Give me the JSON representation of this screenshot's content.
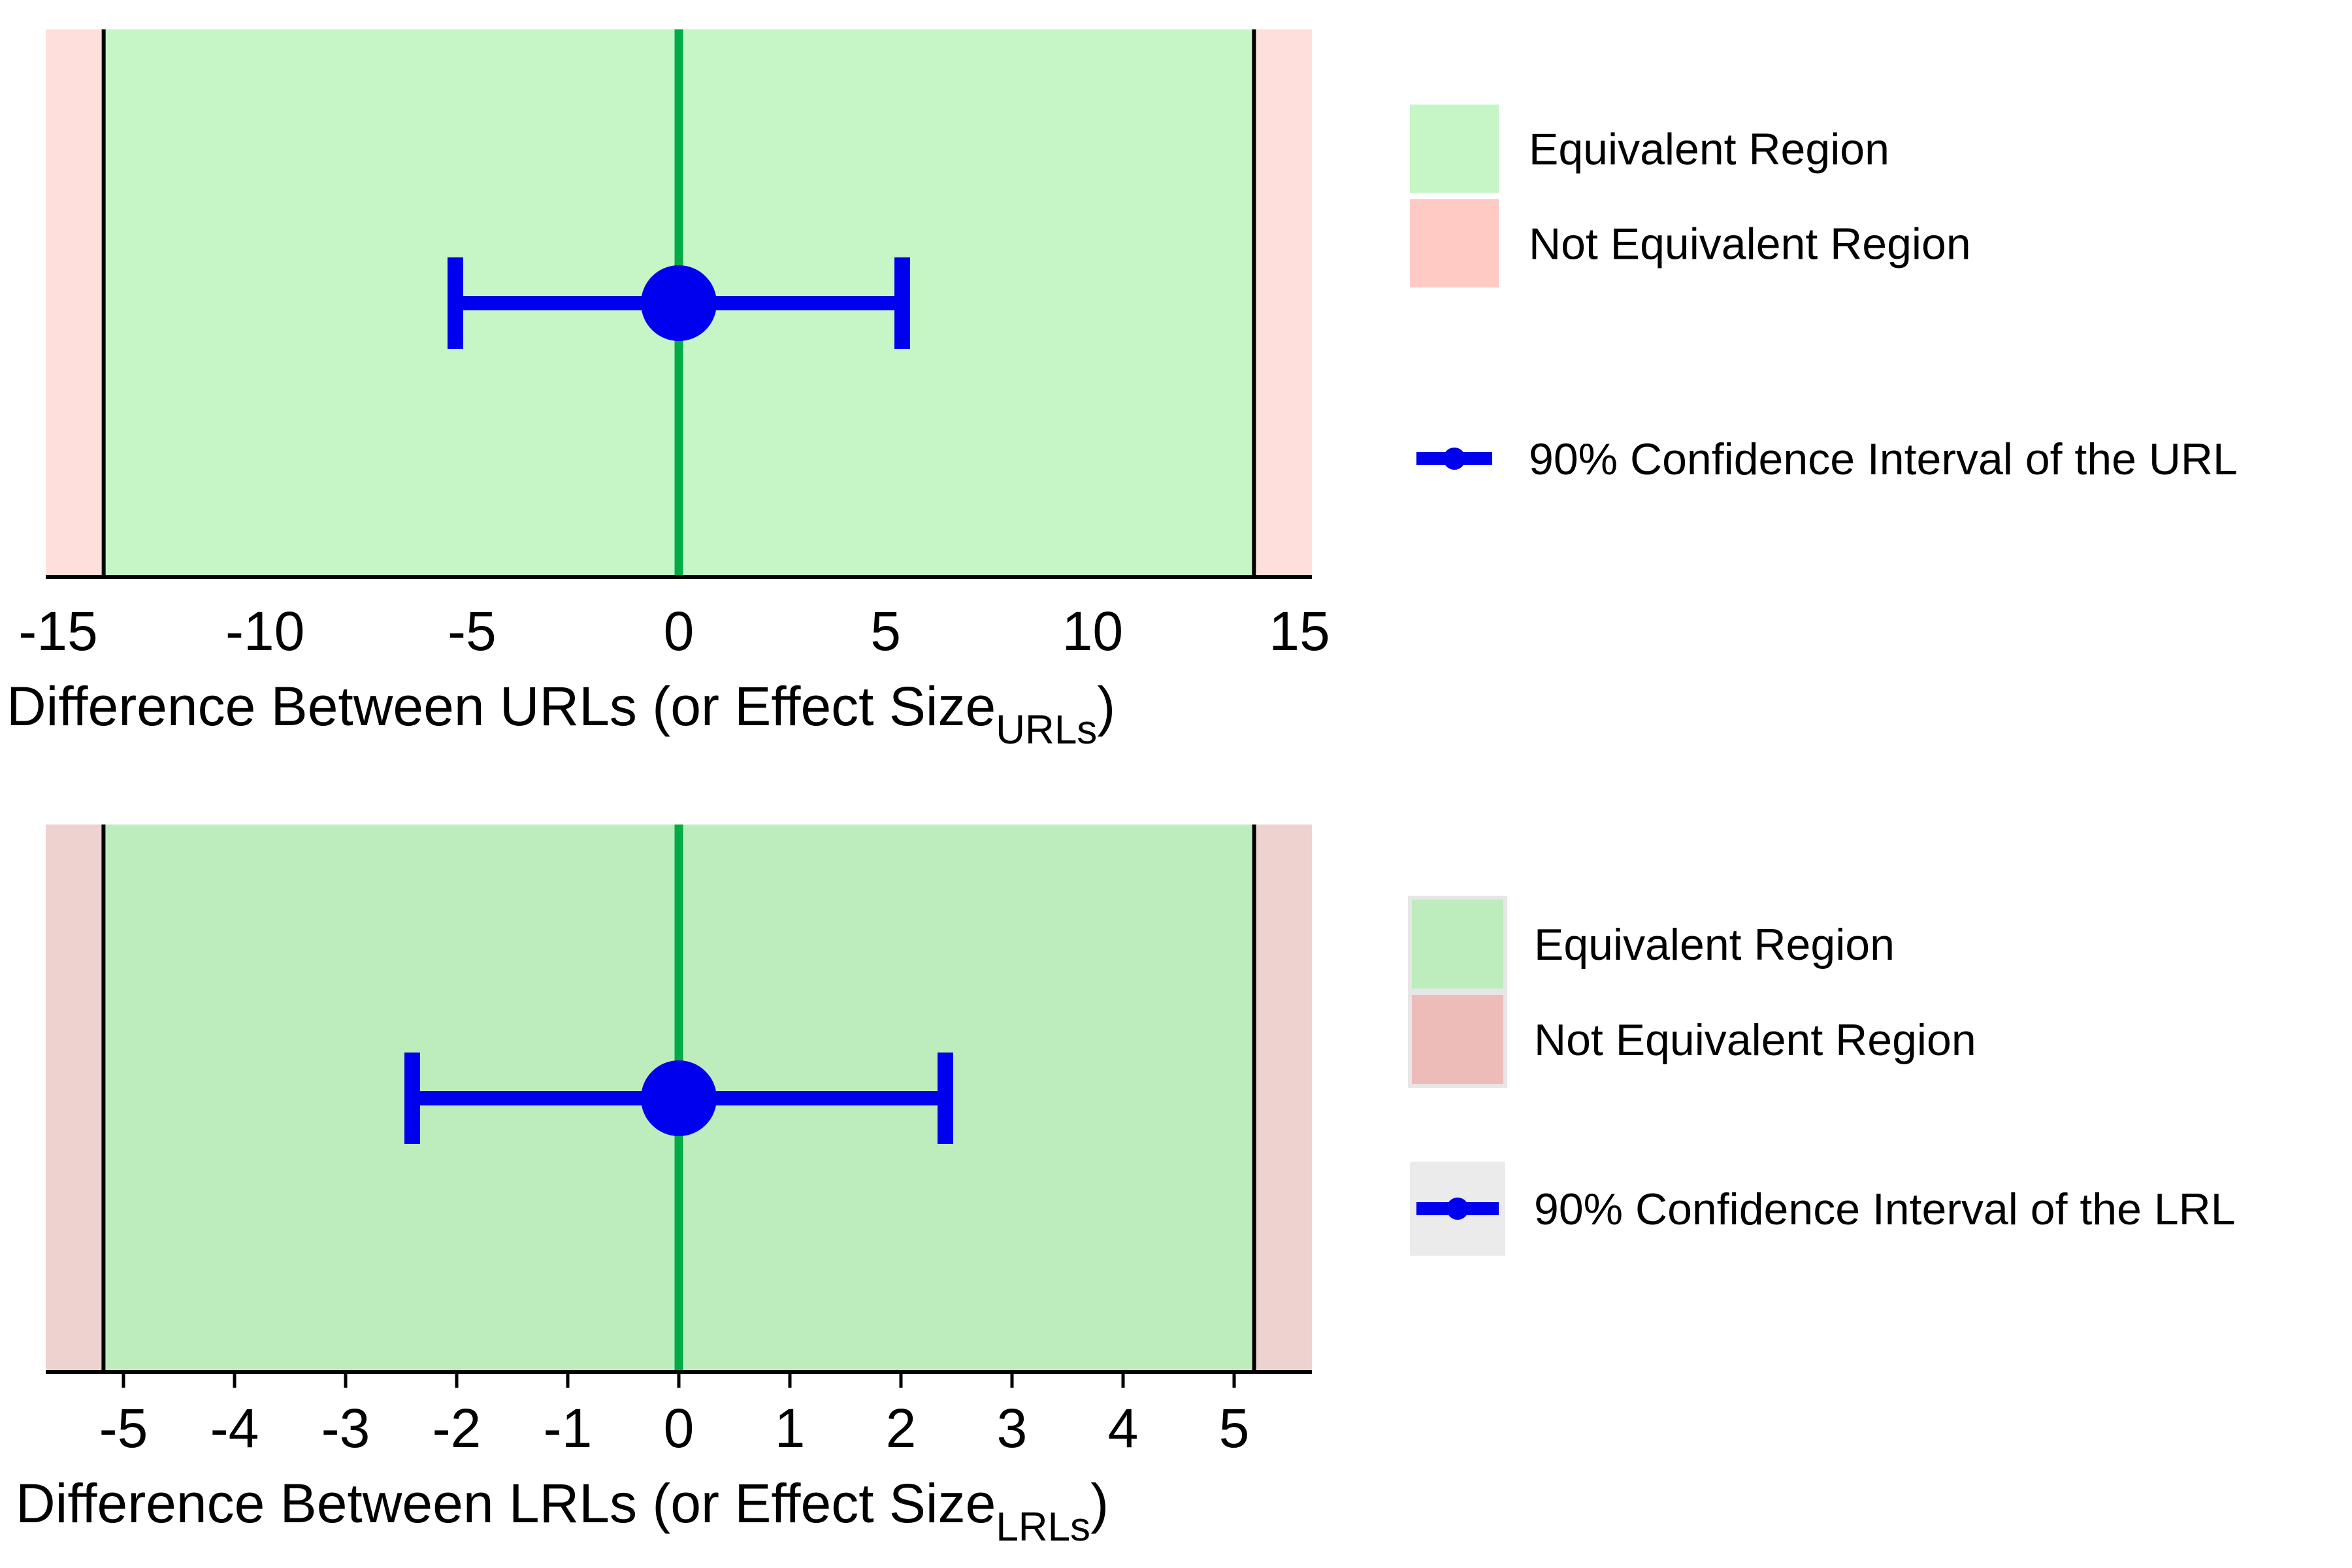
{
  "chart_data": [
    {
      "id": "url",
      "type": "interval",
      "title": "",
      "xlabel": "Difference Between URLs (or Effect Size",
      "xlabel_subscript": "URLs",
      "xlabel_close": ")",
      "xlim": [
        -15.3,
        15.3
      ],
      "xticks": [
        -15,
        -10,
        -5,
        0,
        5,
        10,
        15
      ],
      "tick_labels": [
        "-15",
        "-10",
        "-5",
        "0",
        "5",
        "10",
        "15"
      ],
      "tick_marks": false,
      "equivalence_bounds": [
        -13.9,
        13.9
      ],
      "reference_line": 0,
      "estimate": 0,
      "ci": [
        -5.4,
        5.4
      ],
      "colors": {
        "equivalent": "#c6f5c6",
        "not_equivalent": "#ffdfdc",
        "ci": "#0000ee",
        "reference": "#00aa44",
        "bounds": "#000000"
      },
      "legend": {
        "placement": "right",
        "items": [
          {
            "label": "Equivalent Region",
            "swatch_color": "#c6f5c6"
          },
          {
            "label": "Not Equivalent Region",
            "swatch_color": "#ffc9c4"
          },
          {
            "label": "90% Confidence Interval of the URL",
            "swatch_color": "#0000ee"
          }
        ]
      }
    },
    {
      "id": "lrl",
      "type": "interval",
      "title": "",
      "xlabel": "Difference Between LRLs (or Effect Size",
      "xlabel_subscript": "LRLs",
      "xlabel_close": ")",
      "xlim": [
        -5.7,
        5.7
      ],
      "xticks": [
        -5,
        -4,
        -3,
        -2,
        -1,
        0,
        1,
        2,
        3,
        4,
        5
      ],
      "tick_labels": [
        "-5",
        "-4",
        "-3",
        "-2",
        "-1",
        "0",
        "1",
        "2",
        "3",
        "4",
        "5"
      ],
      "tick_marks": true,
      "equivalence_bounds": [
        -5.18,
        5.18
      ],
      "reference_line": 0,
      "estimate": 0,
      "ci": [
        -2.4,
        2.4
      ],
      "colors": {
        "equivalent": "#bdecbd",
        "not_equivalent": "#eed2d0",
        "ci": "#0000ee",
        "reference": "#00aa44",
        "bounds": "#000000"
      },
      "legend": {
        "placement": "right",
        "items": [
          {
            "label": "Equivalent Region",
            "swatch_color": "#bdecbd"
          },
          {
            "label": "Not Equivalent Region",
            "swatch_color": "#eebcb8"
          },
          {
            "label": "90% Confidence Interval of the LRL",
            "swatch_color": "#0000ee"
          }
        ]
      }
    }
  ]
}
